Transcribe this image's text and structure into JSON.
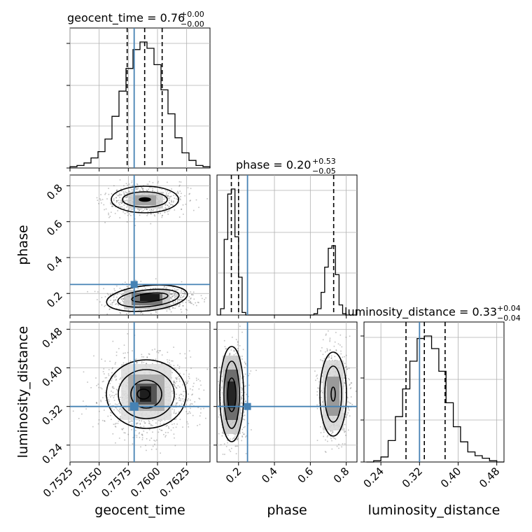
{
  "chart_data": {
    "type": "corner",
    "parameters": [
      "geocent_time",
      "phase",
      "luminosity_distance"
    ],
    "truths": {
      "geocent_time": 0.758,
      "phase": 0.25,
      "luminosity_distance": 0.32
    },
    "truth_color": "#4682b4",
    "contour_color": "#000000",
    "grid": true,
    "panels": {
      "geocent_time": {
        "title": "geocent_time = 0.76",
        "title_plus": "+0.00",
        "title_minus": "−0.00",
        "xlim": [
          0.7525,
          0.7645
        ],
        "quantiles": [
          0.7574,
          0.7589,
          0.7604
        ],
        "ticks": [
          "0.7525",
          "0.7550",
          "0.7575",
          "0.7600",
          "0.7625"
        ],
        "tick_values": [
          0.7525,
          0.755,
          0.7575,
          0.76,
          0.7625
        ],
        "xlabel": "geocent_time",
        "hist_max": 1.0,
        "hist_bin_edges": [
          0.7525,
          0.7531,
          0.7537,
          0.7543,
          0.7549,
          0.7555,
          0.7561,
          0.7567,
          0.7573,
          0.7579,
          0.7585,
          0.7591,
          0.7597,
          0.7603,
          0.7609,
          0.7615,
          0.7621,
          0.7627,
          0.7633,
          0.7639,
          0.7645
        ],
        "hist_values": [
          0.01,
          0.02,
          0.04,
          0.08,
          0.13,
          0.23,
          0.41,
          0.61,
          0.79,
          0.94,
          1.0,
          0.95,
          0.82,
          0.62,
          0.43,
          0.24,
          0.12,
          0.06,
          0.02,
          0.01
        ]
      },
      "phase": {
        "title": "phase = 0.20",
        "title_plus": "+0.53",
        "title_minus": "−0.05",
        "xlim": [
          0.08,
          0.86
        ],
        "ylim": [
          0.08,
          0.86
        ],
        "quantiles": [
          0.16,
          0.2,
          0.73
        ],
        "ticks": [
          "0.2",
          "0.4",
          "0.6",
          "0.8"
        ],
        "tick_values": [
          0.2,
          0.4,
          0.6,
          0.8
        ],
        "xlabel": "phase",
        "ylabel": "phase",
        "hist_max": 1.0,
        "hist_bin_edges": [
          0.08,
          0.1,
          0.12,
          0.14,
          0.16,
          0.18,
          0.2,
          0.22,
          0.24,
          0.26,
          0.28,
          0.3,
          0.32,
          0.34,
          0.36,
          0.38,
          0.4,
          0.42,
          0.44,
          0.46,
          0.48,
          0.5,
          0.52,
          0.54,
          0.56,
          0.58,
          0.6,
          0.62,
          0.64,
          0.66,
          0.68,
          0.7,
          0.72,
          0.74,
          0.76,
          0.78,
          0.8,
          0.82,
          0.84,
          0.86
        ],
        "hist_values": [
          0.0,
          0.05,
          0.6,
          0.96,
          1.0,
          0.62,
          0.3,
          0.02,
          0.0,
          0.0,
          0.0,
          0.0,
          0.0,
          0.0,
          0.0,
          0.0,
          0.0,
          0.0,
          0.0,
          0.0,
          0.0,
          0.0,
          0.0,
          0.0,
          0.0,
          0.0,
          0.0,
          0.01,
          0.05,
          0.18,
          0.38,
          0.53,
          0.55,
          0.32,
          0.08,
          0.01,
          0.0,
          0.0,
          0.0
        ]
      },
      "luminosity_distance": {
        "title": "luminosity_distance = 0.33",
        "title_plus": "+0.04",
        "title_minus": "−0.04",
        "xlim": [
          0.205,
          0.495
        ],
        "ylim": [
          0.205,
          0.495
        ],
        "quantiles": [
          0.292,
          0.33,
          0.373
        ],
        "ticks": [
          "0.24",
          "0.32",
          "0.40",
          "0.48"
        ],
        "tick_values": [
          0.24,
          0.32,
          0.4,
          0.48
        ],
        "xlabel": "luminosity_distance",
        "ylabel": "luminosity_distance",
        "hist_max": 1.0,
        "hist_bin_edges": [
          0.21,
          0.225,
          0.24,
          0.255,
          0.27,
          0.285,
          0.3,
          0.315,
          0.33,
          0.345,
          0.36,
          0.375,
          0.39,
          0.405,
          0.42,
          0.435,
          0.45,
          0.465,
          0.48,
          0.495
        ],
        "hist_values": [
          0.0,
          0.01,
          0.04,
          0.17,
          0.36,
          0.58,
          0.8,
          0.98,
          1.0,
          0.9,
          0.72,
          0.47,
          0.28,
          0.16,
          0.08,
          0.05,
          0.03,
          0.01,
          0.0
        ]
      }
    }
  }
}
